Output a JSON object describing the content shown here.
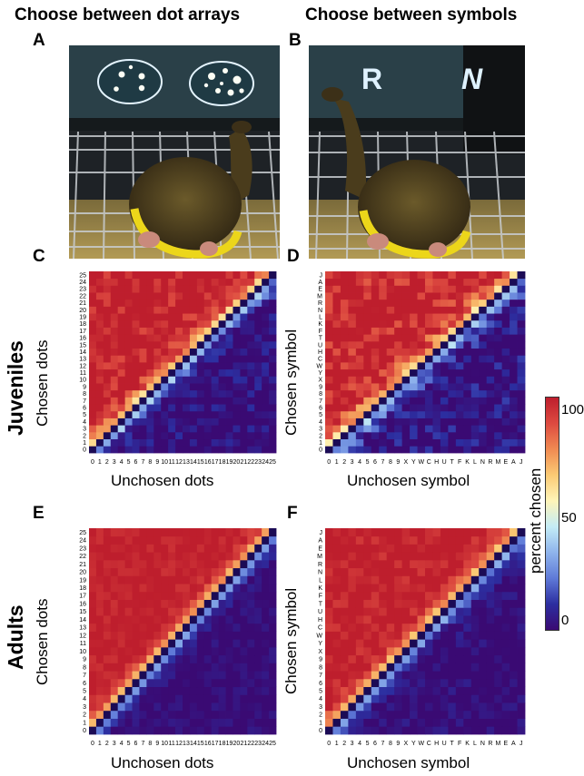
{
  "header": {
    "col1": "Choose between dot arrays",
    "col2": "Choose between symbols"
  },
  "panels": {
    "A": "A",
    "B": "B",
    "C": "C",
    "D": "D",
    "E": "E",
    "F": "F"
  },
  "rows": {
    "top": "Juveniles",
    "bottom": "Adults"
  },
  "photo_b_letters": [
    "R",
    "N"
  ],
  "axes": {
    "dots_x": "Unchosen dots",
    "dots_y": "Chosen dots",
    "sym_x": "Unchosen symbol",
    "sym_y": "Chosen symbol"
  },
  "colorbar": {
    "label": "percent chosen",
    "ticks": [
      "100",
      "50",
      "0"
    ],
    "colors": [
      "#3a0a73",
      "#2c2ea0",
      "#5f7ad8",
      "#8fb4ec",
      "#c4ecf6",
      "#fff4b8",
      "#fbca74",
      "#f08a52",
      "#dd4a40",
      "#be1e2d"
    ]
  },
  "chart_data": [
    {
      "panel": "C",
      "type": "heatmap",
      "x_ticks": [
        "0",
        "1",
        "2",
        "3",
        "4",
        "5",
        "6",
        "7",
        "8",
        "9",
        "10",
        "11",
        "12",
        "13",
        "14",
        "15",
        "16",
        "17",
        "18",
        "19",
        "20",
        "21",
        "22",
        "23",
        "24",
        "25"
      ],
      "y_ticks": [
        "0",
        "1",
        "2",
        "3",
        "4",
        "5",
        "6",
        "7",
        "8",
        "9",
        "10",
        "11",
        "12",
        "13",
        "14",
        "15",
        "16",
        "17",
        "18",
        "19",
        "20",
        "21",
        "22",
        "23",
        "24",
        "25"
      ],
      "xlabel": "Unchosen dots",
      "ylabel": "Chosen dots",
      "zlim": [
        0,
        100
      ],
      "diagonal": "empty",
      "sharpness": 3.5,
      "noise": 0.22,
      "seed": 11
    },
    {
      "panel": "D",
      "type": "heatmap",
      "x_ticks": [
        "0",
        "1",
        "2",
        "3",
        "4",
        "5",
        "6",
        "7",
        "8",
        "9",
        "X",
        "Y",
        "W",
        "C",
        "H",
        "U",
        "T",
        "F",
        "K",
        "L",
        "N",
        "R",
        "M",
        "E",
        "A",
        "J"
      ],
      "y_ticks": [
        "0",
        "1",
        "2",
        "3",
        "4",
        "5",
        "6",
        "7",
        "8",
        "9",
        "X",
        "Y",
        "W",
        "C",
        "H",
        "U",
        "T",
        "F",
        "K",
        "L",
        "N",
        "R",
        "M",
        "E",
        "A",
        "J"
      ],
      "xlabel": "Unchosen symbol",
      "ylabel": "Chosen symbol",
      "zlim": [
        0,
        100
      ],
      "diagonal": "empty",
      "sharpness": 3.2,
      "noise": 0.28,
      "seed": 29
    },
    {
      "panel": "E",
      "type": "heatmap",
      "x_ticks": [
        "0",
        "1",
        "2",
        "3",
        "4",
        "5",
        "6",
        "7",
        "8",
        "9",
        "10",
        "11",
        "12",
        "13",
        "14",
        "15",
        "16",
        "17",
        "18",
        "19",
        "20",
        "21",
        "22",
        "23",
        "24",
        "25"
      ],
      "y_ticks": [
        "0",
        "1",
        "2",
        "3",
        "4",
        "5",
        "6",
        "7",
        "8",
        "9",
        "10",
        "11",
        "12",
        "13",
        "14",
        "15",
        "16",
        "17",
        "18",
        "19",
        "20",
        "21",
        "22",
        "23",
        "24",
        "25"
      ],
      "xlabel": "Unchosen dots",
      "ylabel": "Chosen dots",
      "zlim": [
        0,
        100
      ],
      "diagonal": "empty",
      "sharpness": 4.2,
      "noise": 0.1,
      "seed": 47
    },
    {
      "panel": "F",
      "type": "heatmap",
      "x_ticks": [
        "0",
        "1",
        "2",
        "3",
        "4",
        "5",
        "6",
        "7",
        "8",
        "9",
        "X",
        "Y",
        "W",
        "C",
        "H",
        "U",
        "T",
        "F",
        "K",
        "L",
        "N",
        "R",
        "M",
        "E",
        "A",
        "J"
      ],
      "y_ticks": [
        "0",
        "1",
        "2",
        "3",
        "4",
        "5",
        "6",
        "7",
        "8",
        "9",
        "X",
        "Y",
        "W",
        "C",
        "H",
        "U",
        "T",
        "F",
        "K",
        "L",
        "N",
        "R",
        "M",
        "E",
        "A",
        "J"
      ],
      "xlabel": "Unchosen symbol",
      "ylabel": "Chosen symbol",
      "zlim": [
        0,
        100
      ],
      "diagonal": "empty",
      "sharpness": 4.0,
      "noise": 0.14,
      "seed": 83
    }
  ]
}
